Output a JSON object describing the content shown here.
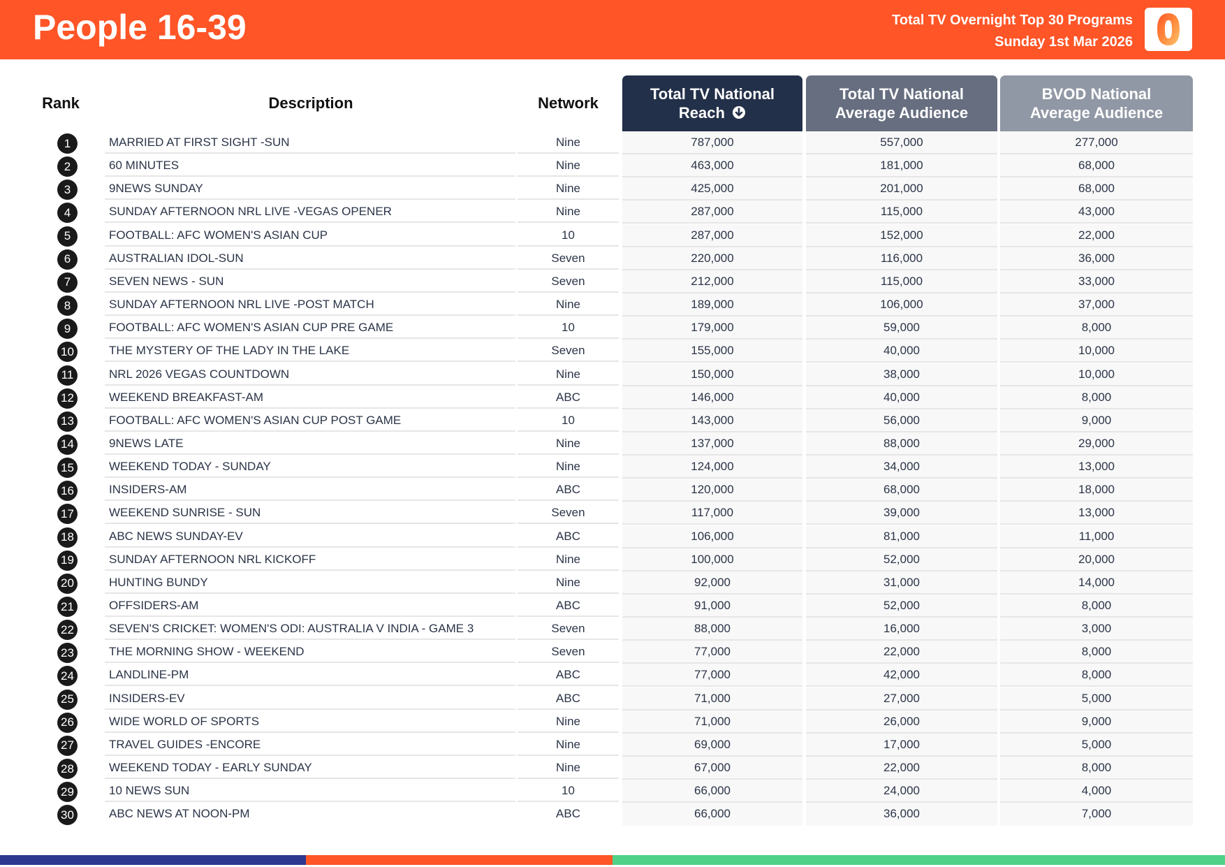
{
  "header": {
    "title": "People 16-39",
    "subtitle_line1": "Total TV Overnight Top 30 Programs",
    "subtitle_line2": "Sunday 1st Mar 2026",
    "logo_glyph": "0",
    "brand_color": "#ff5527"
  },
  "columns": {
    "rank": "Rank",
    "description": "Description",
    "network": "Network",
    "reach_line1": "Total TV National",
    "reach_line2": "Reach",
    "avg_line1": "Total TV National",
    "avg_line2": "Average Audience",
    "bvod_line1": "BVOD National",
    "bvod_line2": "Average Audience",
    "sort_icon": "arrow-down-circle-icon"
  },
  "colors": {
    "reach_header": "#233049",
    "avg_header": "#666e80",
    "bvod_header": "#9198a5",
    "footer": [
      "#2d3790",
      "#ff5527",
      "#50d188"
    ]
  },
  "rows": [
    {
      "rank": "1",
      "desc": "MARRIED AT FIRST SIGHT -SUN",
      "network": "Nine",
      "reach": "787,000",
      "avg": "557,000",
      "bvod": "277,000"
    },
    {
      "rank": "2",
      "desc": "60 MINUTES",
      "network": "Nine",
      "reach": "463,000",
      "avg": "181,000",
      "bvod": "68,000"
    },
    {
      "rank": "3",
      "desc": "9NEWS SUNDAY",
      "network": "Nine",
      "reach": "425,000",
      "avg": "201,000",
      "bvod": "68,000"
    },
    {
      "rank": "4",
      "desc": "SUNDAY AFTERNOON NRL LIVE -VEGAS OPENER",
      "network": "Nine",
      "reach": "287,000",
      "avg": "115,000",
      "bvod": "43,000"
    },
    {
      "rank": "5",
      "desc": "FOOTBALL: AFC WOMEN'S ASIAN CUP",
      "network": "10",
      "reach": "287,000",
      "avg": "152,000",
      "bvod": "22,000"
    },
    {
      "rank": "6",
      "desc": "AUSTRALIAN IDOL-SUN",
      "network": "Seven",
      "reach": "220,000",
      "avg": "116,000",
      "bvod": "36,000"
    },
    {
      "rank": "7",
      "desc": "SEVEN NEWS - SUN",
      "network": "Seven",
      "reach": "212,000",
      "avg": "115,000",
      "bvod": "33,000"
    },
    {
      "rank": "8",
      "desc": "SUNDAY AFTERNOON NRL LIVE -POST MATCH",
      "network": "Nine",
      "reach": "189,000",
      "avg": "106,000",
      "bvod": "37,000"
    },
    {
      "rank": "9",
      "desc": "FOOTBALL: AFC WOMEN'S ASIAN CUP PRE GAME",
      "network": "10",
      "reach": "179,000",
      "avg": "59,000",
      "bvod": "8,000"
    },
    {
      "rank": "10",
      "desc": "THE MYSTERY OF THE LADY IN THE LAKE",
      "network": "Seven",
      "reach": "155,000",
      "avg": "40,000",
      "bvod": "10,000"
    },
    {
      "rank": "11",
      "desc": "NRL 2026 VEGAS COUNTDOWN",
      "network": "Nine",
      "reach": "150,000",
      "avg": "38,000",
      "bvod": "10,000"
    },
    {
      "rank": "12",
      "desc": "WEEKEND BREAKFAST-AM",
      "network": "ABC",
      "reach": "146,000",
      "avg": "40,000",
      "bvod": "8,000"
    },
    {
      "rank": "13",
      "desc": "FOOTBALL: AFC WOMEN'S ASIAN CUP POST GAME",
      "network": "10",
      "reach": "143,000",
      "avg": "56,000",
      "bvod": "9,000"
    },
    {
      "rank": "14",
      "desc": "9NEWS LATE",
      "network": "Nine",
      "reach": "137,000",
      "avg": "88,000",
      "bvod": "29,000"
    },
    {
      "rank": "15",
      "desc": "WEEKEND TODAY - SUNDAY",
      "network": "Nine",
      "reach": "124,000",
      "avg": "34,000",
      "bvod": "13,000"
    },
    {
      "rank": "16",
      "desc": "INSIDERS-AM",
      "network": "ABC",
      "reach": "120,000",
      "avg": "68,000",
      "bvod": "18,000"
    },
    {
      "rank": "17",
      "desc": "WEEKEND SUNRISE - SUN",
      "network": "Seven",
      "reach": "117,000",
      "avg": "39,000",
      "bvod": "13,000"
    },
    {
      "rank": "18",
      "desc": "ABC NEWS SUNDAY-EV",
      "network": "ABC",
      "reach": "106,000",
      "avg": "81,000",
      "bvod": "11,000"
    },
    {
      "rank": "19",
      "desc": "SUNDAY AFTERNOON NRL KICKOFF",
      "network": "Nine",
      "reach": "100,000",
      "avg": "52,000",
      "bvod": "20,000"
    },
    {
      "rank": "20",
      "desc": "HUNTING BUNDY",
      "network": "Nine",
      "reach": "92,000",
      "avg": "31,000",
      "bvod": "14,000"
    },
    {
      "rank": "21",
      "desc": "OFFSIDERS-AM",
      "network": "ABC",
      "reach": "91,000",
      "avg": "52,000",
      "bvod": "8,000"
    },
    {
      "rank": "22",
      "desc": "SEVEN'S CRICKET: WOMEN'S ODI: AUSTRALIA V INDIA - GAME 3",
      "network": "Seven",
      "reach": "88,000",
      "avg": "16,000",
      "bvod": "3,000"
    },
    {
      "rank": "23",
      "desc": "THE MORNING SHOW - WEEKEND",
      "network": "Seven",
      "reach": "77,000",
      "avg": "22,000",
      "bvod": "8,000"
    },
    {
      "rank": "24",
      "desc": "LANDLINE-PM",
      "network": "ABC",
      "reach": "77,000",
      "avg": "42,000",
      "bvod": "8,000"
    },
    {
      "rank": "25",
      "desc": "INSIDERS-EV",
      "network": "ABC",
      "reach": "71,000",
      "avg": "27,000",
      "bvod": "5,000"
    },
    {
      "rank": "26",
      "desc": "WIDE WORLD OF SPORTS",
      "network": "Nine",
      "reach": "71,000",
      "avg": "26,000",
      "bvod": "9,000"
    },
    {
      "rank": "27",
      "desc": "TRAVEL GUIDES -ENCORE",
      "network": "Nine",
      "reach": "69,000",
      "avg": "17,000",
      "bvod": "5,000"
    },
    {
      "rank": "28",
      "desc": "WEEKEND TODAY - EARLY SUNDAY",
      "network": "Nine",
      "reach": "67,000",
      "avg": "22,000",
      "bvod": "8,000"
    },
    {
      "rank": "29",
      "desc": "10 NEWS SUN",
      "network": "10",
      "reach": "66,000",
      "avg": "24,000",
      "bvod": "4,000"
    },
    {
      "rank": "30",
      "desc": "ABC NEWS AT NOON-PM",
      "network": "ABC",
      "reach": "66,000",
      "avg": "36,000",
      "bvod": "7,000"
    }
  ]
}
